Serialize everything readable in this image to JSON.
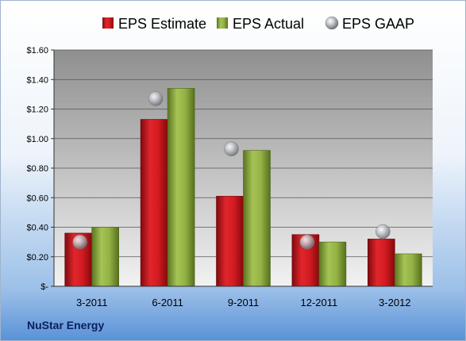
{
  "company": "NuStar Energy",
  "colors": {
    "estimate": "#c4161c",
    "actual": "#8aa83a",
    "gaap": "#a8aab0"
  },
  "chart_data": {
    "type": "bar",
    "categories": [
      "3-2011",
      "6-2011",
      "9-2011",
      "12-2011",
      "3-2012"
    ],
    "series": [
      {
        "name": "EPS Estimate",
        "values": [
          0.36,
          1.13,
          0.61,
          0.35,
          0.32
        ]
      },
      {
        "name": "EPS Actual",
        "values": [
          0.4,
          1.34,
          0.92,
          0.3,
          0.22
        ]
      },
      {
        "name": "EPS GAAP",
        "values": [
          0.3,
          1.27,
          0.93,
          0.3,
          0.37
        ],
        "marker": "circle"
      }
    ],
    "ylim": [
      0,
      1.6
    ],
    "yticks": [
      0,
      0.2,
      0.4,
      0.6,
      0.8,
      1.0,
      1.2,
      1.4,
      1.6
    ],
    "ytick_labels": [
      "$-",
      "$0.20",
      "$0.40",
      "$0.60",
      "$0.80",
      "$1.00",
      "$1.20",
      "$1.40",
      "$1.60"
    ],
    "grid": true,
    "legend_position": "top"
  }
}
